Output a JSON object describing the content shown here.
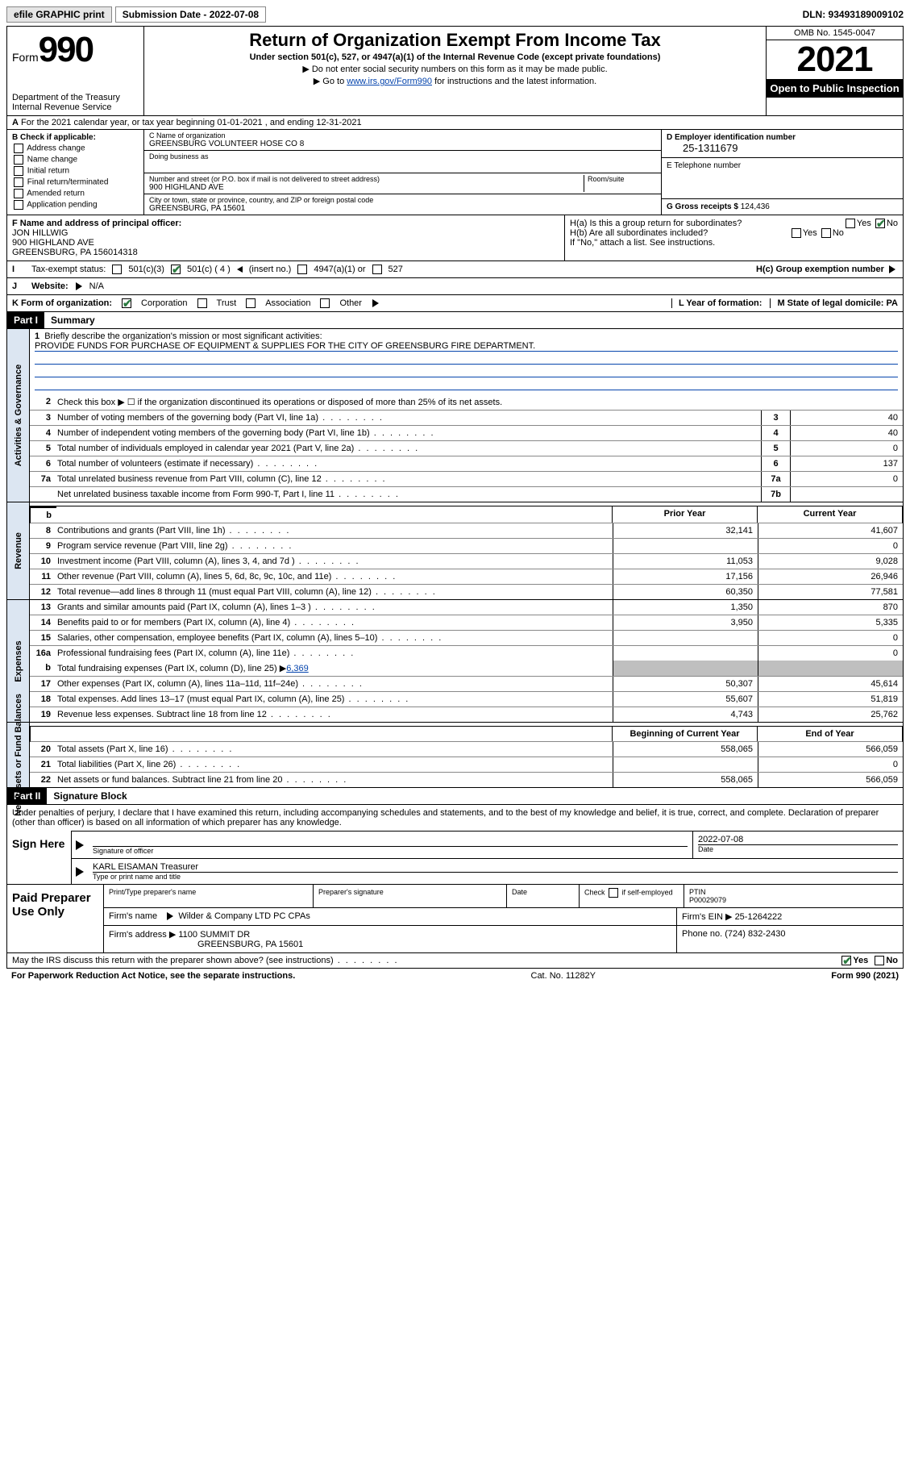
{
  "topbar": {
    "efile": "efile GRAPHIC print",
    "submission_label": "Submission Date - 2022-07-08",
    "dln_label": "DLN: 93493189009102"
  },
  "header": {
    "form_label": "Form",
    "form_num": "990",
    "dept": "Department of the Treasury",
    "irs": "Internal Revenue Service",
    "title": "Return of Organization Exempt From Income Tax",
    "sub": "Under section 501(c), 527, or 4947(a)(1) of the Internal Revenue Code (except private foundations)",
    "note1": "Do not enter social security numbers on this form as it may be made public.",
    "note2_pre": "Go to ",
    "note2_link": "www.irs.gov/Form990",
    "note2_post": " for instructions and the latest information.",
    "omb": "OMB No. 1545-0047",
    "year": "2021",
    "pub": "Open to Public Inspection"
  },
  "rowA": "For the 2021 calendar year, or tax year beginning 01-01-2021    , and ending 12-31-2021",
  "B": {
    "hd": "B Check if applicable:",
    "items": [
      "Address change",
      "Name change",
      "Initial return",
      "Final return/terminated",
      "Amended return",
      "Application pending"
    ]
  },
  "C": {
    "name_lbl": "C Name of organization",
    "name": "GREENSBURG VOLUNTEER HOSE CO 8",
    "dba_lbl": "Doing business as",
    "addr_lbl": "Number and street (or P.O. box if mail is not delivered to street address)",
    "room_lbl": "Room/suite",
    "addr": "900 HIGHLAND AVE",
    "city_lbl": "City or town, state or province, country, and ZIP or foreign postal code",
    "city": "GREENSBURG, PA  15601"
  },
  "D": {
    "lbl": "D Employer identification number",
    "val": "25-1311679"
  },
  "E": {
    "lbl": "E Telephone number",
    "val": ""
  },
  "G": {
    "lbl": "G Gross receipts $",
    "val": "124,436"
  },
  "F": {
    "lbl": "F  Name and address of principal officer:",
    "name": "JON HILLWIG",
    "addr1": "900 HIGHLAND AVE",
    "addr2": "GREENSBURG, PA  156014318"
  },
  "H": {
    "a": "H(a)  Is this a group return for subordinates?",
    "b": "H(b)  Are all subordinates included?",
    "b_note": "If \"No,\" attach a list. See instructions.",
    "c": "H(c)  Group exemption number",
    "yes": "Yes",
    "no": "No"
  },
  "I": {
    "lbl": "Tax-exempt status:",
    "o1": "501(c)(3)",
    "o2": "501(c) ( 4 )",
    "ins": "(insert no.)",
    "o3": "4947(a)(1) or",
    "o4": "527"
  },
  "J": {
    "lbl": "Website:",
    "val": "N/A"
  },
  "K": {
    "lbl": "K Form of organization:",
    "opts": [
      "Corporation",
      "Trust",
      "Association",
      "Other"
    ]
  },
  "L": {
    "lbl": "L Year of formation:"
  },
  "M": {
    "lbl": "M State of legal domicile: PA"
  },
  "partI": {
    "tag": "Part I",
    "title": "Summary"
  },
  "vtabs": {
    "gov": "Activities & Governance",
    "rev": "Revenue",
    "exp": "Expenses",
    "net": "Net Assets or Fund Balances"
  },
  "s1": {
    "num": "1",
    "txt": "Briefly describe the organization's mission or most significant activities:",
    "mission": "PROVIDE FUNDS FOR PURCHASE OF EQUIPMENT & SUPPLIES FOR THE CITY OF GREENSBURG FIRE DEPARTMENT."
  },
  "s2": {
    "num": "2",
    "txt": "Check this box ▶ ☐  if the organization discontinued its operations or disposed of more than 25% of its net assets."
  },
  "govlines": [
    {
      "n": "3",
      "t": "Number of voting members of the governing body (Part VI, line 1a)",
      "b": "3",
      "v": "40"
    },
    {
      "n": "4",
      "t": "Number of independent voting members of the governing body (Part VI, line 1b)",
      "b": "4",
      "v": "40"
    },
    {
      "n": "5",
      "t": "Total number of individuals employed in calendar year 2021 (Part V, line 2a)",
      "b": "5",
      "v": "0"
    },
    {
      "n": "6",
      "t": "Total number of volunteers (estimate if necessary)",
      "b": "6",
      "v": "137"
    },
    {
      "n": "7a",
      "t": "Total unrelated business revenue from Part VIII, column (C), line 12",
      "b": "7a",
      "v": "0"
    },
    {
      "n": "",
      "t": "Net unrelated business taxable income from Form 990-T, Part I, line 11",
      "b": "7b",
      "v": ""
    }
  ],
  "colhdr": {
    "prior": "Prior Year",
    "current": "Current Year"
  },
  "revlines": [
    {
      "n": "8",
      "t": "Contributions and grants (Part VIII, line 1h)",
      "p": "32,141",
      "c": "41,607"
    },
    {
      "n": "9",
      "t": "Program service revenue (Part VIII, line 2g)",
      "p": "",
      "c": "0"
    },
    {
      "n": "10",
      "t": "Investment income (Part VIII, column (A), lines 3, 4, and 7d )",
      "p": "11,053",
      "c": "9,028"
    },
    {
      "n": "11",
      "t": "Other revenue (Part VIII, column (A), lines 5, 6d, 8c, 9c, 10c, and 11e)",
      "p": "17,156",
      "c": "26,946"
    },
    {
      "n": "12",
      "t": "Total revenue—add lines 8 through 11 (must equal Part VIII, column (A), line 12)",
      "p": "60,350",
      "c": "77,581"
    }
  ],
  "explines": [
    {
      "n": "13",
      "t": "Grants and similar amounts paid (Part IX, column (A), lines 1–3 )",
      "p": "1,350",
      "c": "870"
    },
    {
      "n": "14",
      "t": "Benefits paid to or for members (Part IX, column (A), line 4)",
      "p": "3,950",
      "c": "5,335"
    },
    {
      "n": "15",
      "t": "Salaries, other compensation, employee benefits (Part IX, column (A), lines 5–10)",
      "p": "",
      "c": "0"
    },
    {
      "n": "16a",
      "t": "Professional fundraising fees (Part IX, column (A), line 11e)",
      "p": "",
      "c": "0"
    }
  ],
  "exp16b": {
    "n": "b",
    "t": "Total fundraising expenses (Part IX, column (D), line 25) ▶",
    "amt": "6,369"
  },
  "explines2": [
    {
      "n": "17",
      "t": "Other expenses (Part IX, column (A), lines 11a–11d, 11f–24e)",
      "p": "50,307",
      "c": "45,614"
    },
    {
      "n": "18",
      "t": "Total expenses. Add lines 13–17 (must equal Part IX, column (A), line 25)",
      "p": "55,607",
      "c": "51,819"
    },
    {
      "n": "19",
      "t": "Revenue less expenses. Subtract line 18 from line 12",
      "p": "4,743",
      "c": "25,762"
    }
  ],
  "netcolhdr": {
    "begin": "Beginning of Current Year",
    "end": "End of Year"
  },
  "netlines": [
    {
      "n": "20",
      "t": "Total assets (Part X, line 16)",
      "p": "558,065",
      "c": "566,059"
    },
    {
      "n": "21",
      "t": "Total liabilities (Part X, line 26)",
      "p": "",
      "c": "0"
    },
    {
      "n": "22",
      "t": "Net assets or fund balances. Subtract line 21 from line 20",
      "p": "558,065",
      "c": "566,059"
    }
  ],
  "partII": {
    "tag": "Part II",
    "title": "Signature Block"
  },
  "decl": "Under penalties of perjury, I declare that I have examined this return, including accompanying schedules and statements, and to the best of my knowledge and belief, it is true, correct, and complete. Declaration of preparer (other than officer) is based on all information of which preparer has any knowledge.",
  "sign": {
    "here": "Sign Here",
    "sig_lbl": "Signature of officer",
    "date_lbl": "Date",
    "date": "2022-07-08",
    "name": "KARL EISAMAN Treasurer",
    "name_lbl": "Type or print name and title"
  },
  "prep": {
    "left": "Paid Preparer Use Only",
    "h1": "Print/Type preparer's name",
    "h2": "Preparer's signature",
    "h3": "Date",
    "h4_pre": "Check",
    "h4_post": "if self-employed",
    "h5": "PTIN",
    "ptin": "P00029079",
    "firm_lbl": "Firm's name",
    "firm": "Wilder & Company LTD PC CPAs",
    "ein_lbl": "Firm's EIN ▶",
    "ein": "25-1264222",
    "addr_lbl": "Firm's address ▶",
    "addr1": "1100 SUMMIT DR",
    "addr2": "GREENSBURG, PA  15601",
    "phone_lbl": "Phone no.",
    "phone": "(724) 832-2430"
  },
  "footer": {
    "q": "May the IRS discuss this return with the preparer shown above? (see instructions)",
    "yes": "Yes",
    "no": "No"
  },
  "paperwork": {
    "l": "For Paperwork Reduction Act Notice, see the separate instructions.",
    "m": "Cat. No. 11282Y",
    "r": "Form 990 (2021)"
  }
}
